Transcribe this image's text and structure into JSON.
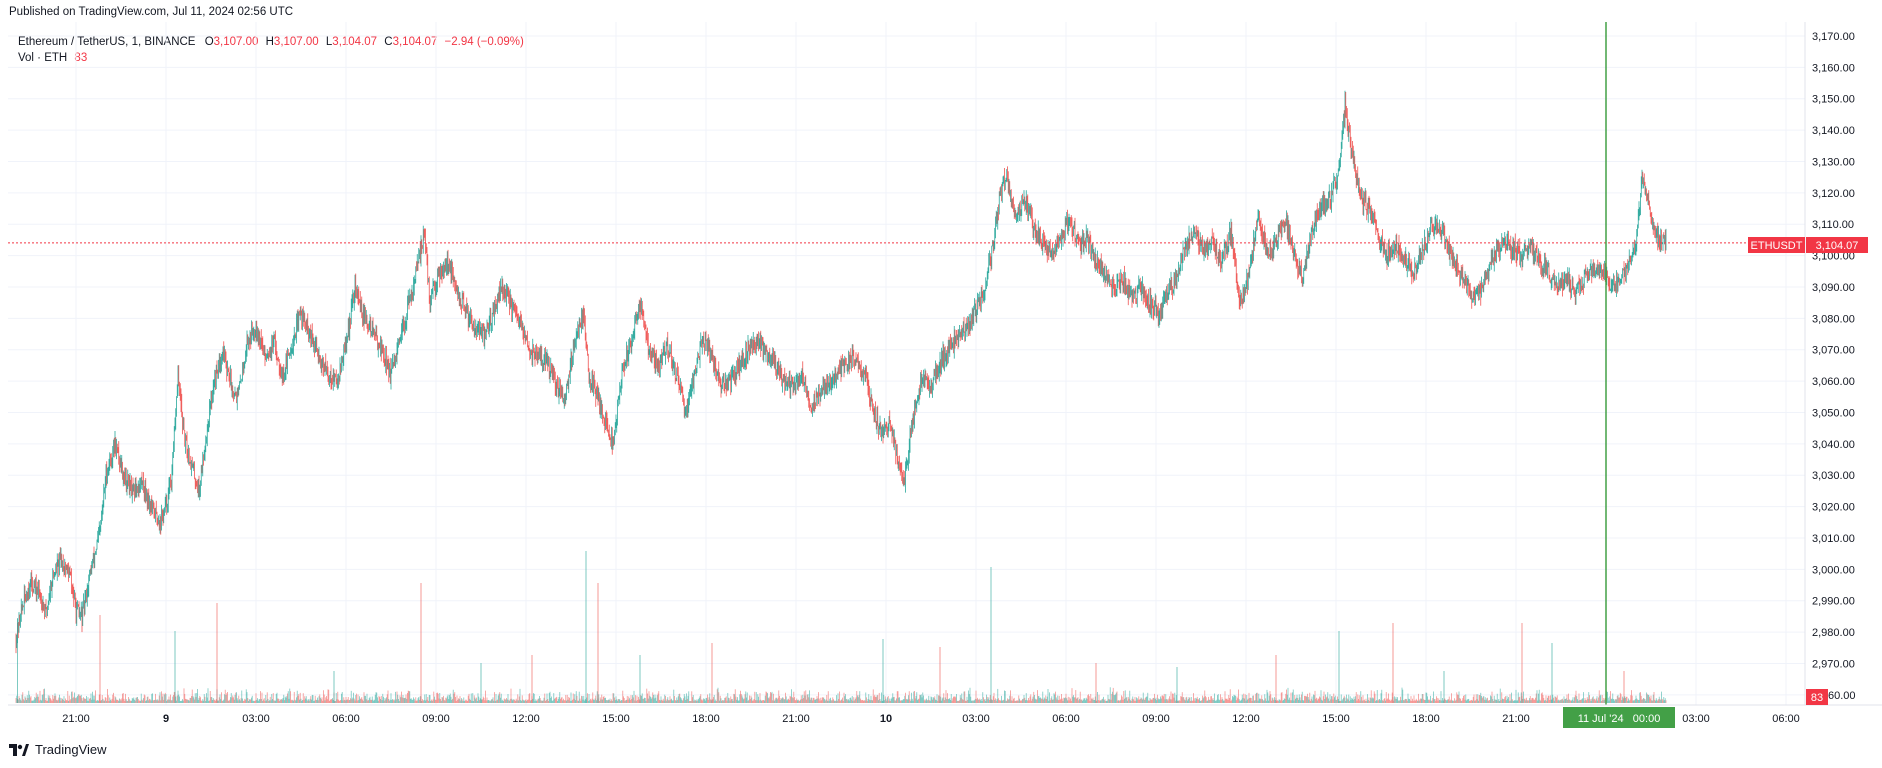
{
  "published": "Published on TradingView.com, Jul 11, 2024 02:56 UTC",
  "legend": {
    "symbol": "Ethereum / TetherUS, 1, BINANCE",
    "o_label": "O",
    "o_value": "3,107.00",
    "h_label": "H",
    "h_value": "3,107.00",
    "l_label": "L",
    "l_value": "3,104.07",
    "c_label": "C",
    "c_value": "3,104.07",
    "change": "−2.94 (−0.09%)",
    "vol_label": "Vol · ETH",
    "vol_value": "83"
  },
  "price_badge": {
    "symbol": "ETHUSDT",
    "price": "3,104.07"
  },
  "volume_badge": "83",
  "crosshair_label": "11 Jul '24   00:00",
  "footer": {
    "brand": "TradingView"
  },
  "colors": {
    "up": "#26a69a",
    "down": "#ef5350",
    "price_line": "#f23645",
    "crosshair": "#43a047"
  },
  "chart_data": {
    "type": "candlestick",
    "symbol": "ETHUSDT",
    "interval": "1",
    "ylim": [
      2959,
      3170
    ],
    "y_ticks": [
      2960,
      2970,
      2980,
      2990,
      3000,
      3010,
      3020,
      3030,
      3040,
      3050,
      3060,
      3070,
      3080,
      3090,
      3100,
      3110,
      3120,
      3130,
      3140,
      3150,
      3160,
      3170
    ],
    "x_ticks": [
      {
        "label": "21:00",
        "h": 2
      },
      {
        "label": "9",
        "h": 5
      },
      {
        "label": "03:00",
        "h": 8
      },
      {
        "label": "06:00",
        "h": 11
      },
      {
        "label": "09:00",
        "h": 14
      },
      {
        "label": "12:00",
        "h": 17
      },
      {
        "label": "15:00",
        "h": 20
      },
      {
        "label": "18:00",
        "h": 23
      },
      {
        "label": "21:00",
        "h": 26
      },
      {
        "label": "10",
        "h": 29
      },
      {
        "label": "03:00",
        "h": 32
      },
      {
        "label": "06:00",
        "h": 35
      },
      {
        "label": "09:00",
        "h": 38
      },
      {
        "label": "12:00",
        "h": 41
      },
      {
        "label": "15:00",
        "h": 44
      },
      {
        "label": "18:00",
        "h": 47
      },
      {
        "label": "21:00",
        "h": 50
      },
      {
        "label": "03:00",
        "h": 56
      },
      {
        "label": "06:00",
        "h": 59
      }
    ],
    "last_price": 3104.07,
    "crosshair_h": 53,
    "price_path": [
      [
        0,
        2978
      ],
      [
        0.2,
        2988
      ],
      [
        0.5,
        2996
      ],
      [
        0.8,
        2992
      ],
      [
        1,
        2986
      ],
      [
        1.2,
        2997
      ],
      [
        1.5,
        3003
      ],
      [
        1.8,
        2998
      ],
      [
        2,
        2987
      ],
      [
        2.2,
        2985
      ],
      [
        2.5,
        3000
      ],
      [
        2.8,
        3012
      ],
      [
        3.0,
        3030
      ],
      [
        3.3,
        3040
      ],
      [
        3.6,
        3030
      ],
      [
        3.9,
        3024
      ],
      [
        4.2,
        3028
      ],
      [
        4.5,
        3020
      ],
      [
        4.8,
        3015
      ],
      [
        5.0,
        3020
      ],
      [
        5.2,
        3030
      ],
      [
        5.4,
        3062
      ],
      [
        5.6,
        3042
      ],
      [
        5.8,
        3035
      ],
      [
        6.1,
        3025
      ],
      [
        6.3,
        3040
      ],
      [
        6.6,
        3060
      ],
      [
        6.9,
        3070
      ],
      [
        7.2,
        3058
      ],
      [
        7.4,
        3055
      ],
      [
        7.7,
        3072
      ],
      [
        8.0,
        3078
      ],
      [
        8.3,
        3068
      ],
      [
        8.6,
        3072
      ],
      [
        8.9,
        3062
      ],
      [
        9.2,
        3072
      ],
      [
        9.5,
        3082
      ],
      [
        9.8,
        3074
      ],
      [
        10.1,
        3068
      ],
      [
        10.4,
        3062
      ],
      [
        10.7,
        3060
      ],
      [
        11.0,
        3072
      ],
      [
        11.3,
        3090
      ],
      [
        11.6,
        3080
      ],
      [
        11.9,
        3076
      ],
      [
        12.2,
        3070
      ],
      [
        12.5,
        3062
      ],
      [
        12.8,
        3072
      ],
      [
        13.1,
        3085
      ],
      [
        13.4,
        3097
      ],
      [
        13.6,
        3108
      ],
      [
        13.8,
        3085
      ],
      [
        14.1,
        3095
      ],
      [
        14.4,
        3098
      ],
      [
        14.7,
        3088
      ],
      [
        15.0,
        3082
      ],
      [
        15.3,
        3078
      ],
      [
        15.6,
        3074
      ],
      [
        15.9,
        3082
      ],
      [
        16.2,
        3090
      ],
      [
        16.5,
        3084
      ],
      [
        16.8,
        3078
      ],
      [
        17.1,
        3070
      ],
      [
        17.4,
        3068
      ],
      [
        17.7,
        3066
      ],
      [
        18.0,
        3058
      ],
      [
        18.3,
        3055
      ],
      [
        18.6,
        3072
      ],
      [
        18.9,
        3082
      ],
      [
        19.1,
        3062
      ],
      [
        19.4,
        3055
      ],
      [
        19.7,
        3045
      ],
      [
        19.9,
        3040
      ],
      [
        20.2,
        3062
      ],
      [
        20.5,
        3073
      ],
      [
        20.8,
        3085
      ],
      [
        21.1,
        3070
      ],
      [
        21.4,
        3064
      ],
      [
        21.7,
        3072
      ],
      [
        22.0,
        3062
      ],
      [
        22.3,
        3050
      ],
      [
        22.6,
        3062
      ],
      [
        22.9,
        3074
      ],
      [
        23.2,
        3068
      ],
      [
        23.5,
        3058
      ],
      [
        23.8,
        3060
      ],
      [
        24.1,
        3064
      ],
      [
        24.4,
        3070
      ],
      [
        24.7,
        3073
      ],
      [
        25.0,
        3070
      ],
      [
        25.3,
        3066
      ],
      [
        25.6,
        3060
      ],
      [
        25.9,
        3058
      ],
      [
        26.2,
        3062
      ],
      [
        26.5,
        3052
      ],
      [
        26.8,
        3056
      ],
      [
        27.1,
        3060
      ],
      [
        27.4,
        3062
      ],
      [
        27.7,
        3066
      ],
      [
        28.0,
        3068
      ],
      [
        28.3,
        3062
      ],
      [
        28.6,
        3050
      ],
      [
        28.9,
        3042
      ],
      [
        29.1,
        3048
      ],
      [
        29.4,
        3035
      ],
      [
        29.6,
        3028
      ],
      [
        29.9,
        3048
      ],
      [
        30.2,
        3062
      ],
      [
        30.5,
        3058
      ],
      [
        30.8,
        3066
      ],
      [
        31.1,
        3070
      ],
      [
        31.4,
        3074
      ],
      [
        31.7,
        3078
      ],
      [
        32.0,
        3082
      ],
      [
        32.3,
        3090
      ],
      [
        32.6,
        3105
      ],
      [
        32.8,
        3120
      ],
      [
        33.0,
        3125
      ],
      [
        33.3,
        3112
      ],
      [
        33.6,
        3118
      ],
      [
        33.9,
        3110
      ],
      [
        34.2,
        3104
      ],
      [
        34.5,
        3100
      ],
      [
        34.8,
        3106
      ],
      [
        35.1,
        3112
      ],
      [
        35.4,
        3104
      ],
      [
        35.7,
        3105
      ],
      [
        36.0,
        3098
      ],
      [
        36.3,
        3094
      ],
      [
        36.6,
        3088
      ],
      [
        36.9,
        3092
      ],
      [
        37.2,
        3086
      ],
      [
        37.5,
        3090
      ],
      [
        37.8,
        3085
      ],
      [
        38.1,
        3082
      ],
      [
        38.4,
        3088
      ],
      [
        38.7,
        3094
      ],
      [
        39.0,
        3104
      ],
      [
        39.3,
        3108
      ],
      [
        39.6,
        3102
      ],
      [
        39.9,
        3104
      ],
      [
        40.2,
        3098
      ],
      [
        40.5,
        3108
      ],
      [
        40.8,
        3084
      ],
      [
        41.1,
        3094
      ],
      [
        41.4,
        3114
      ],
      [
        41.7,
        3100
      ],
      [
        42.0,
        3104
      ],
      [
        42.3,
        3112
      ],
      [
        42.6,
        3100
      ],
      [
        42.9,
        3093
      ],
      [
        43.2,
        3108
      ],
      [
        43.5,
        3116
      ],
      [
        43.8,
        3118
      ],
      [
        44.1,
        3128
      ],
      [
        44.3,
        3148
      ],
      [
        44.5,
        3134
      ],
      [
        44.8,
        3120
      ],
      [
        45.1,
        3114
      ],
      [
        45.4,
        3106
      ],
      [
        45.7,
        3100
      ],
      [
        46.0,
        3104
      ],
      [
        46.3,
        3098
      ],
      [
        46.6,
        3095
      ],
      [
        46.9,
        3102
      ],
      [
        47.2,
        3110
      ],
      [
        47.5,
        3108
      ],
      [
        47.8,
        3100
      ],
      [
        48.1,
        3095
      ],
      [
        48.4,
        3090
      ],
      [
        48.7,
        3086
      ],
      [
        49.0,
        3094
      ],
      [
        49.3,
        3100
      ],
      [
        49.6,
        3104
      ],
      [
        49.9,
        3102
      ],
      [
        50.2,
        3100
      ],
      [
        50.5,
        3103
      ],
      [
        50.8,
        3098
      ],
      [
        51.1,
        3095
      ],
      [
        51.4,
        3090
      ],
      [
        51.7,
        3093
      ],
      [
        52.0,
        3088
      ],
      [
        52.3,
        3093
      ],
      [
        52.6,
        3096
      ],
      [
        52.9,
        3094
      ],
      [
        53.2,
        3090
      ],
      [
        53.5,
        3092
      ],
      [
        53.8,
        3098
      ],
      [
        54.0,
        3102
      ],
      [
        54.2,
        3126
      ],
      [
        54.5,
        3112
      ],
      [
        54.8,
        3104
      ],
      [
        55.0,
        3104.07
      ]
    ],
    "volume_spikes": [
      [
        0.05,
        20
      ],
      [
        2.8,
        22
      ],
      [
        5.3,
        18
      ],
      [
        6.7,
        25
      ],
      [
        10.6,
        8
      ],
      [
        13.5,
        30
      ],
      [
        15.5,
        10
      ],
      [
        17.2,
        12
      ],
      [
        19.0,
        38
      ],
      [
        19.4,
        30
      ],
      [
        20.8,
        12
      ],
      [
        23.2,
        15
      ],
      [
        28.9,
        16
      ],
      [
        30.8,
        14
      ],
      [
        32.5,
        34
      ],
      [
        36.0,
        10
      ],
      [
        38.7,
        9
      ],
      [
        42.0,
        12
      ],
      [
        44.1,
        18
      ],
      [
        45.9,
        20
      ],
      [
        47.6,
        8
      ],
      [
        50.2,
        20
      ],
      [
        51.2,
        15
      ],
      [
        53.6,
        8
      ]
    ]
  }
}
